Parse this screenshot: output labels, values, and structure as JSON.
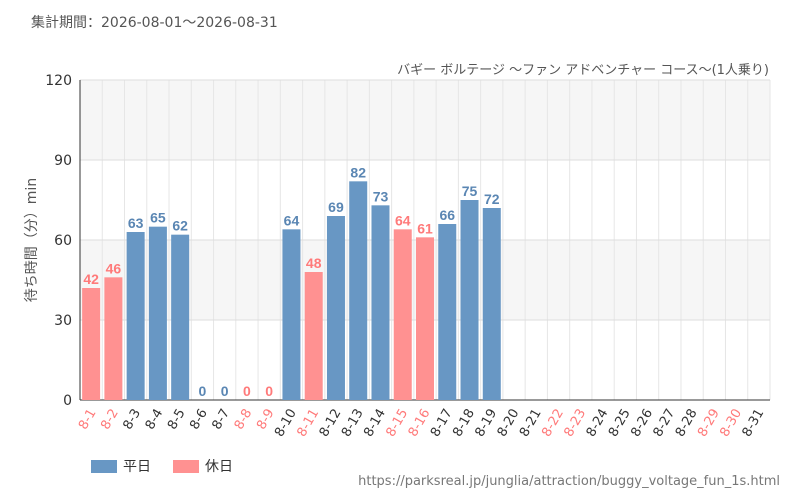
{
  "header": {
    "period": "集計期間：2026-08-01～2026-08-31"
  },
  "chart_data": {
    "type": "bar",
    "title": "バギー ボルテージ ～ファン アドベンチャー コース～(1人乗り)",
    "ylabel": "待ち時間（分）min",
    "xlabel": "",
    "ylim": [
      0,
      120
    ],
    "yticks": [
      0,
      30,
      60,
      90,
      120
    ],
    "grid": true,
    "legend_position": "bottom-left",
    "colors": {
      "weekday": "#6897c4",
      "holiday": "#ff9191",
      "weekday_label": "#5a86b3",
      "holiday_label": "#ff7a7a",
      "tick_weekday": "#333333",
      "tick_holiday": "#ff7a7a"
    },
    "series": [
      {
        "name": "平日",
        "key": "weekday"
      },
      {
        "name": "休日",
        "key": "holiday"
      }
    ],
    "categories": [
      "8-1",
      "8-2",
      "8-3",
      "8-4",
      "8-5",
      "8-6",
      "8-7",
      "8-8",
      "8-9",
      "8-10",
      "8-11",
      "8-12",
      "8-13",
      "8-14",
      "8-15",
      "8-16",
      "8-17",
      "8-18",
      "8-19",
      "8-20",
      "8-21",
      "8-22",
      "8-23",
      "8-24",
      "8-25",
      "8-26",
      "8-27",
      "8-28",
      "8-29",
      "8-30",
      "8-31"
    ],
    "day_types": [
      "holiday",
      "holiday",
      "weekday",
      "weekday",
      "weekday",
      "weekday",
      "weekday",
      "holiday",
      "holiday",
      "weekday",
      "holiday",
      "weekday",
      "weekday",
      "weekday",
      "holiday",
      "holiday",
      "weekday",
      "weekday",
      "weekday",
      "weekday",
      "weekday",
      "holiday",
      "holiday",
      "weekday",
      "weekday",
      "weekday",
      "weekday",
      "weekday",
      "holiday",
      "holiday",
      "weekday"
    ],
    "values": [
      42,
      46,
      63,
      65,
      62,
      0,
      0,
      0,
      0,
      64,
      48,
      69,
      82,
      73,
      64,
      61,
      66,
      75,
      72,
      null,
      null,
      null,
      null,
      null,
      null,
      null,
      null,
      null,
      null,
      null,
      null
    ]
  },
  "footer": {
    "source_url": "https://parksreal.jp/junglia/attraction/buggy_voltage_fun_1s.html"
  }
}
